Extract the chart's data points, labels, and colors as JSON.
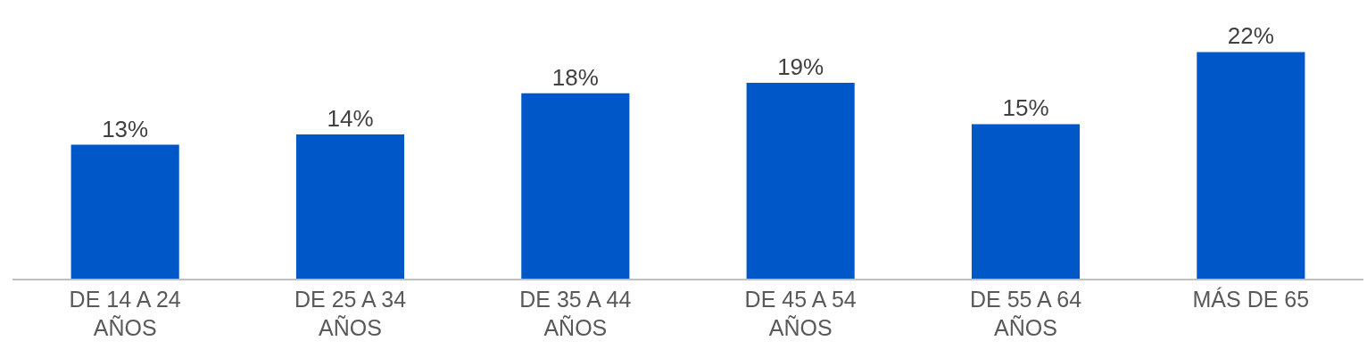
{
  "chart_data": {
    "type": "bar",
    "categories": [
      "DE 14 A 24 AÑOS",
      "DE 25 A 34 AÑOS",
      "DE 35 A 44 AÑOS",
      "DE 45 A 54 AÑOS",
      "DE 55 A 64 AÑOS",
      "MÁS DE 65"
    ],
    "values": [
      13,
      14,
      18,
      19,
      15,
      22
    ],
    "value_labels": [
      "13%",
      "14%",
      "18%",
      "19%",
      "15%",
      "22%"
    ],
    "color": "#0057c8",
    "grid": false,
    "legend": false
  }
}
